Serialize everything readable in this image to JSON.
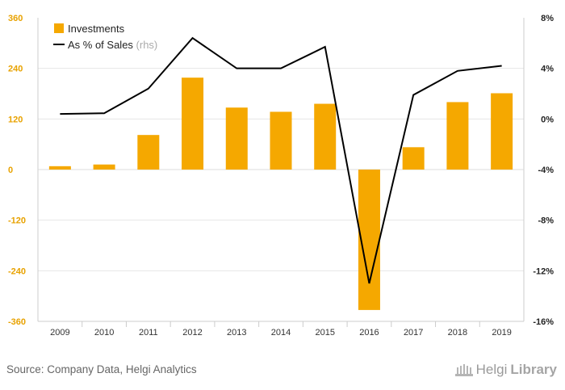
{
  "chart_data": {
    "type": "bar",
    "categories": [
      "2009",
      "2010",
      "2011",
      "2012",
      "2013",
      "2014",
      "2015",
      "2016",
      "2017",
      "2018",
      "2019"
    ],
    "series": [
      {
        "name": "Investments",
        "axis": "left",
        "type": "bar",
        "color": "#F5A800",
        "values": [
          8,
          12,
          82,
          218,
          147,
          137,
          156,
          -333,
          53,
          160,
          181
        ]
      },
      {
        "name": "As % of Sales",
        "legend_suffix": "(rhs)",
        "axis": "right",
        "type": "line",
        "color": "#000000",
        "values": [
          0.4,
          0.45,
          2.4,
          6.4,
          4.0,
          4.0,
          5.7,
          -13.0,
          1.9,
          3.8,
          4.2
        ]
      }
    ],
    "y_left": {
      "ticks": [
        "360",
        "240",
        "120",
        "0",
        "-120",
        "-240",
        "-360"
      ],
      "min": -360,
      "max": 360,
      "tick_color": "#E8A200"
    },
    "y_right": {
      "ticks": [
        "8%",
        "4%",
        "0%",
        "-4%",
        "-8%",
        "-12%",
        "-16%"
      ],
      "min": -16,
      "max": 8
    },
    "grid": true,
    "legend_position": "top-left"
  },
  "footer": {
    "source": "Source: Company Data, Helgi Analytics",
    "brand_name": "Helgi",
    "brand_suffix": "Library"
  }
}
